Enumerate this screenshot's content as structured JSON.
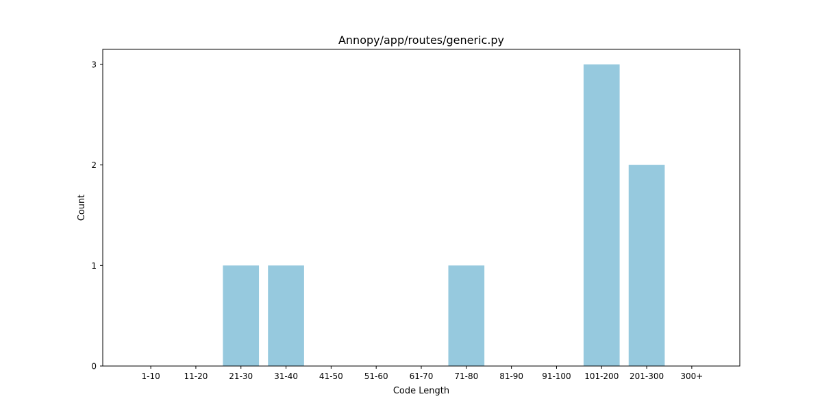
{
  "chart_data": {
    "type": "bar",
    "title": "Annopy/app/routes/generic.py",
    "xlabel": "Code Length",
    "ylabel": "Count",
    "categories": [
      "1-10",
      "11-20",
      "21-30",
      "31-40",
      "41-50",
      "51-60",
      "61-70",
      "71-80",
      "81-90",
      "91-100",
      "101-200",
      "201-300",
      "300+"
    ],
    "values": [
      0,
      0,
      1,
      1,
      0,
      0,
      0,
      1,
      0,
      0,
      3,
      2,
      0
    ],
    "yticks": [
      0,
      1,
      2,
      3
    ],
    "ylim": [
      0,
      3.15
    ],
    "grid": false,
    "legend": "none",
    "bar_color": "#96c9de"
  }
}
